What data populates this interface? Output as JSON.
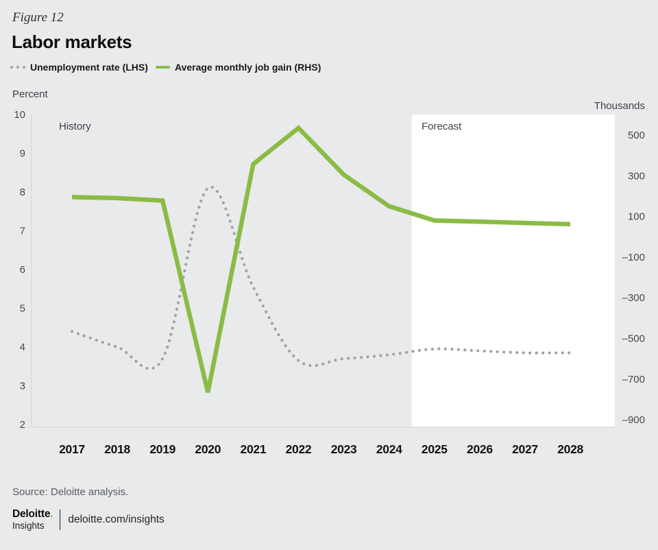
{
  "figure_label": "Figure 12",
  "title": "Labor markets",
  "legend": {
    "unemployment": "Unemployment rate (LHS)",
    "job_gain": "Average monthly job gain (RHS)"
  },
  "axes": {
    "left_title": "Percent",
    "right_title": "Thousands",
    "left_ticks": [
      10,
      9,
      8,
      7,
      6,
      5,
      4,
      3,
      2
    ],
    "right_ticks": [
      500,
      300,
      100,
      -100,
      -300,
      -500,
      -700,
      -900
    ],
    "years": [
      2017,
      2018,
      2019,
      2020,
      2021,
      2022,
      2023,
      2024,
      2025,
      2026,
      2027,
      2028
    ]
  },
  "annotations": {
    "history": "History",
    "forecast": "Forecast"
  },
  "source": "Source: Deloitte analysis.",
  "footer": {
    "brand": "Deloitte",
    "brand_dot": ".",
    "brand_sub": "Insights",
    "link": "deloitte.com/insights"
  },
  "colors": {
    "background": "#e9eaeb",
    "forecast_bg": "#ffffff",
    "green": "#8abc45",
    "dot_gray": "#a0a2a5",
    "axis_line": "#d5d6d8",
    "brand_green": "#86bc25"
  },
  "chart_data": {
    "type": "line",
    "x": [
      2017,
      2018,
      2019,
      2020,
      2021,
      2022,
      2023,
      2024,
      2025,
      2026,
      2027,
      2028
    ],
    "series": [
      {
        "name": "Unemployment rate (LHS)",
        "axis": "left",
        "style": "dotted",
        "color": "#a0a2a5",
        "values": [
          4.4,
          4.0,
          3.7,
          8.1,
          5.55,
          3.65,
          3.7,
          3.8,
          3.95,
          3.9,
          3.85,
          3.85
        ]
      },
      {
        "name": "Average monthly job gain (RHS)",
        "axis": "right",
        "style": "solid",
        "color": "#8abc45",
        "values": [
          195,
          190,
          178,
          -765,
          357,
          535,
          305,
          150,
          80,
          74,
          68,
          62
        ]
      }
    ],
    "left_ylabel": "Percent",
    "right_ylabel": "Thousands",
    "left_ylim": [
      2,
      10
    ],
    "right_ylim": [
      -900,
      500
    ],
    "forecast_start_x": 2024.5,
    "history_label": "History",
    "forecast_label": "Forecast",
    "grid": false,
    "legend_position": "top"
  }
}
